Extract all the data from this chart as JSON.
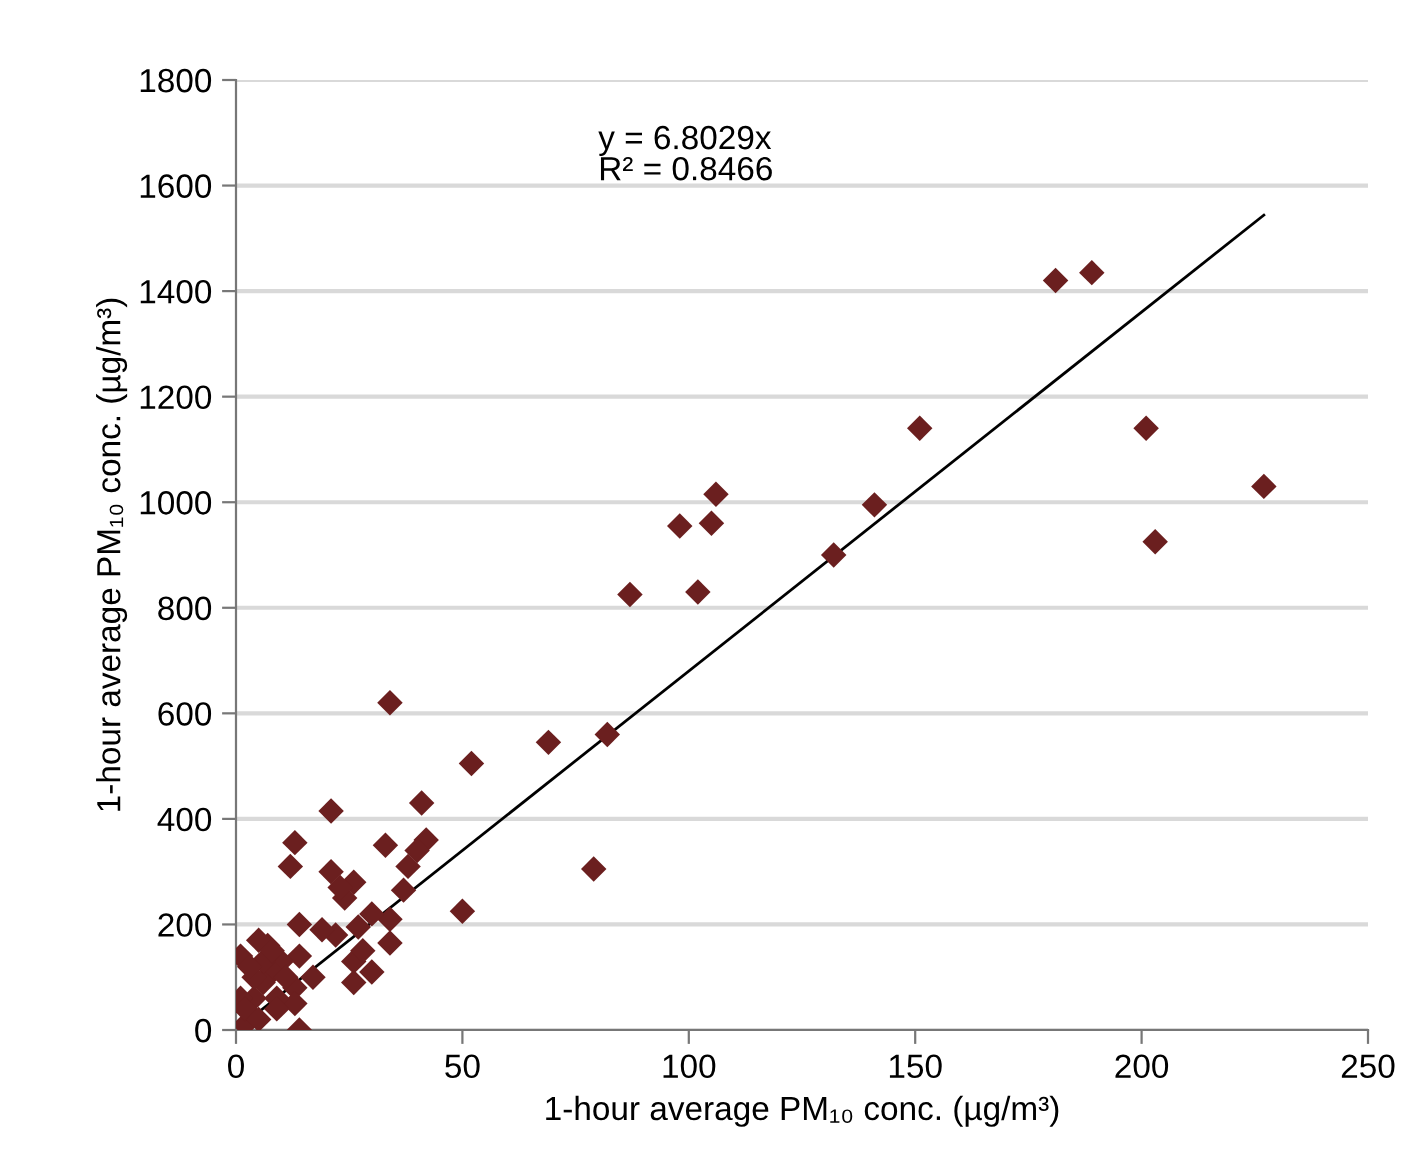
{
  "chart_data": {
    "type": "scatter",
    "xlabel": "1-hour average PM₁₀ conc. (µg/m³)",
    "ylabel": "1-hour average PM₁₀ conc. (µg/m³)",
    "annotations": [
      "y = 6.8029x\nR² = 0.8466"
    ],
    "xlim": [
      0,
      250
    ],
    "xticks": [
      0,
      50,
      100,
      150,
      200,
      250
    ],
    "ylim": [
      0,
      1800
    ],
    "yticks": [
      0,
      200,
      400,
      600,
      800,
      1000,
      1200,
      1400,
      1600,
      1800
    ],
    "grid": "y",
    "series": [
      {
        "marker": "diamond",
        "color": "#6b1f1f",
        "x": [
          181,
          189,
          201,
          203,
          227,
          151,
          141,
          132,
          106,
          105,
          102,
          98,
          87,
          82,
          79,
          69,
          52,
          50,
          34,
          41,
          42,
          40,
          38,
          37,
          33,
          34,
          34,
          30,
          27,
          26,
          26,
          26,
          24,
          23,
          22,
          21,
          21,
          14,
          14,
          13,
          12,
          13,
          13,
          14,
          10,
          8,
          7,
          5,
          6,
          4,
          2,
          1,
          1,
          2,
          5,
          9,
          11,
          17,
          19,
          28,
          30,
          6,
          4,
          3,
          8,
          9
        ],
        "values": [
          1420,
          1435,
          1140,
          925,
          1030,
          1140,
          995,
          900,
          1015,
          960,
          830,
          955,
          825,
          560,
          305,
          545,
          505,
          225,
          620,
          430,
          360,
          340,
          310,
          265,
          350,
          210,
          165,
          220,
          195,
          280,
          130,
          90,
          250,
          270,
          180,
          415,
          300,
          200,
          140,
          355,
          310,
          80,
          50,
          0,
          130,
          110,
          160,
          170,
          90,
          60,
          10,
          140,
          60,
          40,
          20,
          60,
          100,
          100,
          190,
          150,
          110,
          130,
          100,
          120,
          150,
          40
        ]
      },
      {
        "type": "line",
        "color": "#000000",
        "x": [
          0,
          227
        ],
        "values": [
          0,
          1544
        ]
      }
    ]
  }
}
